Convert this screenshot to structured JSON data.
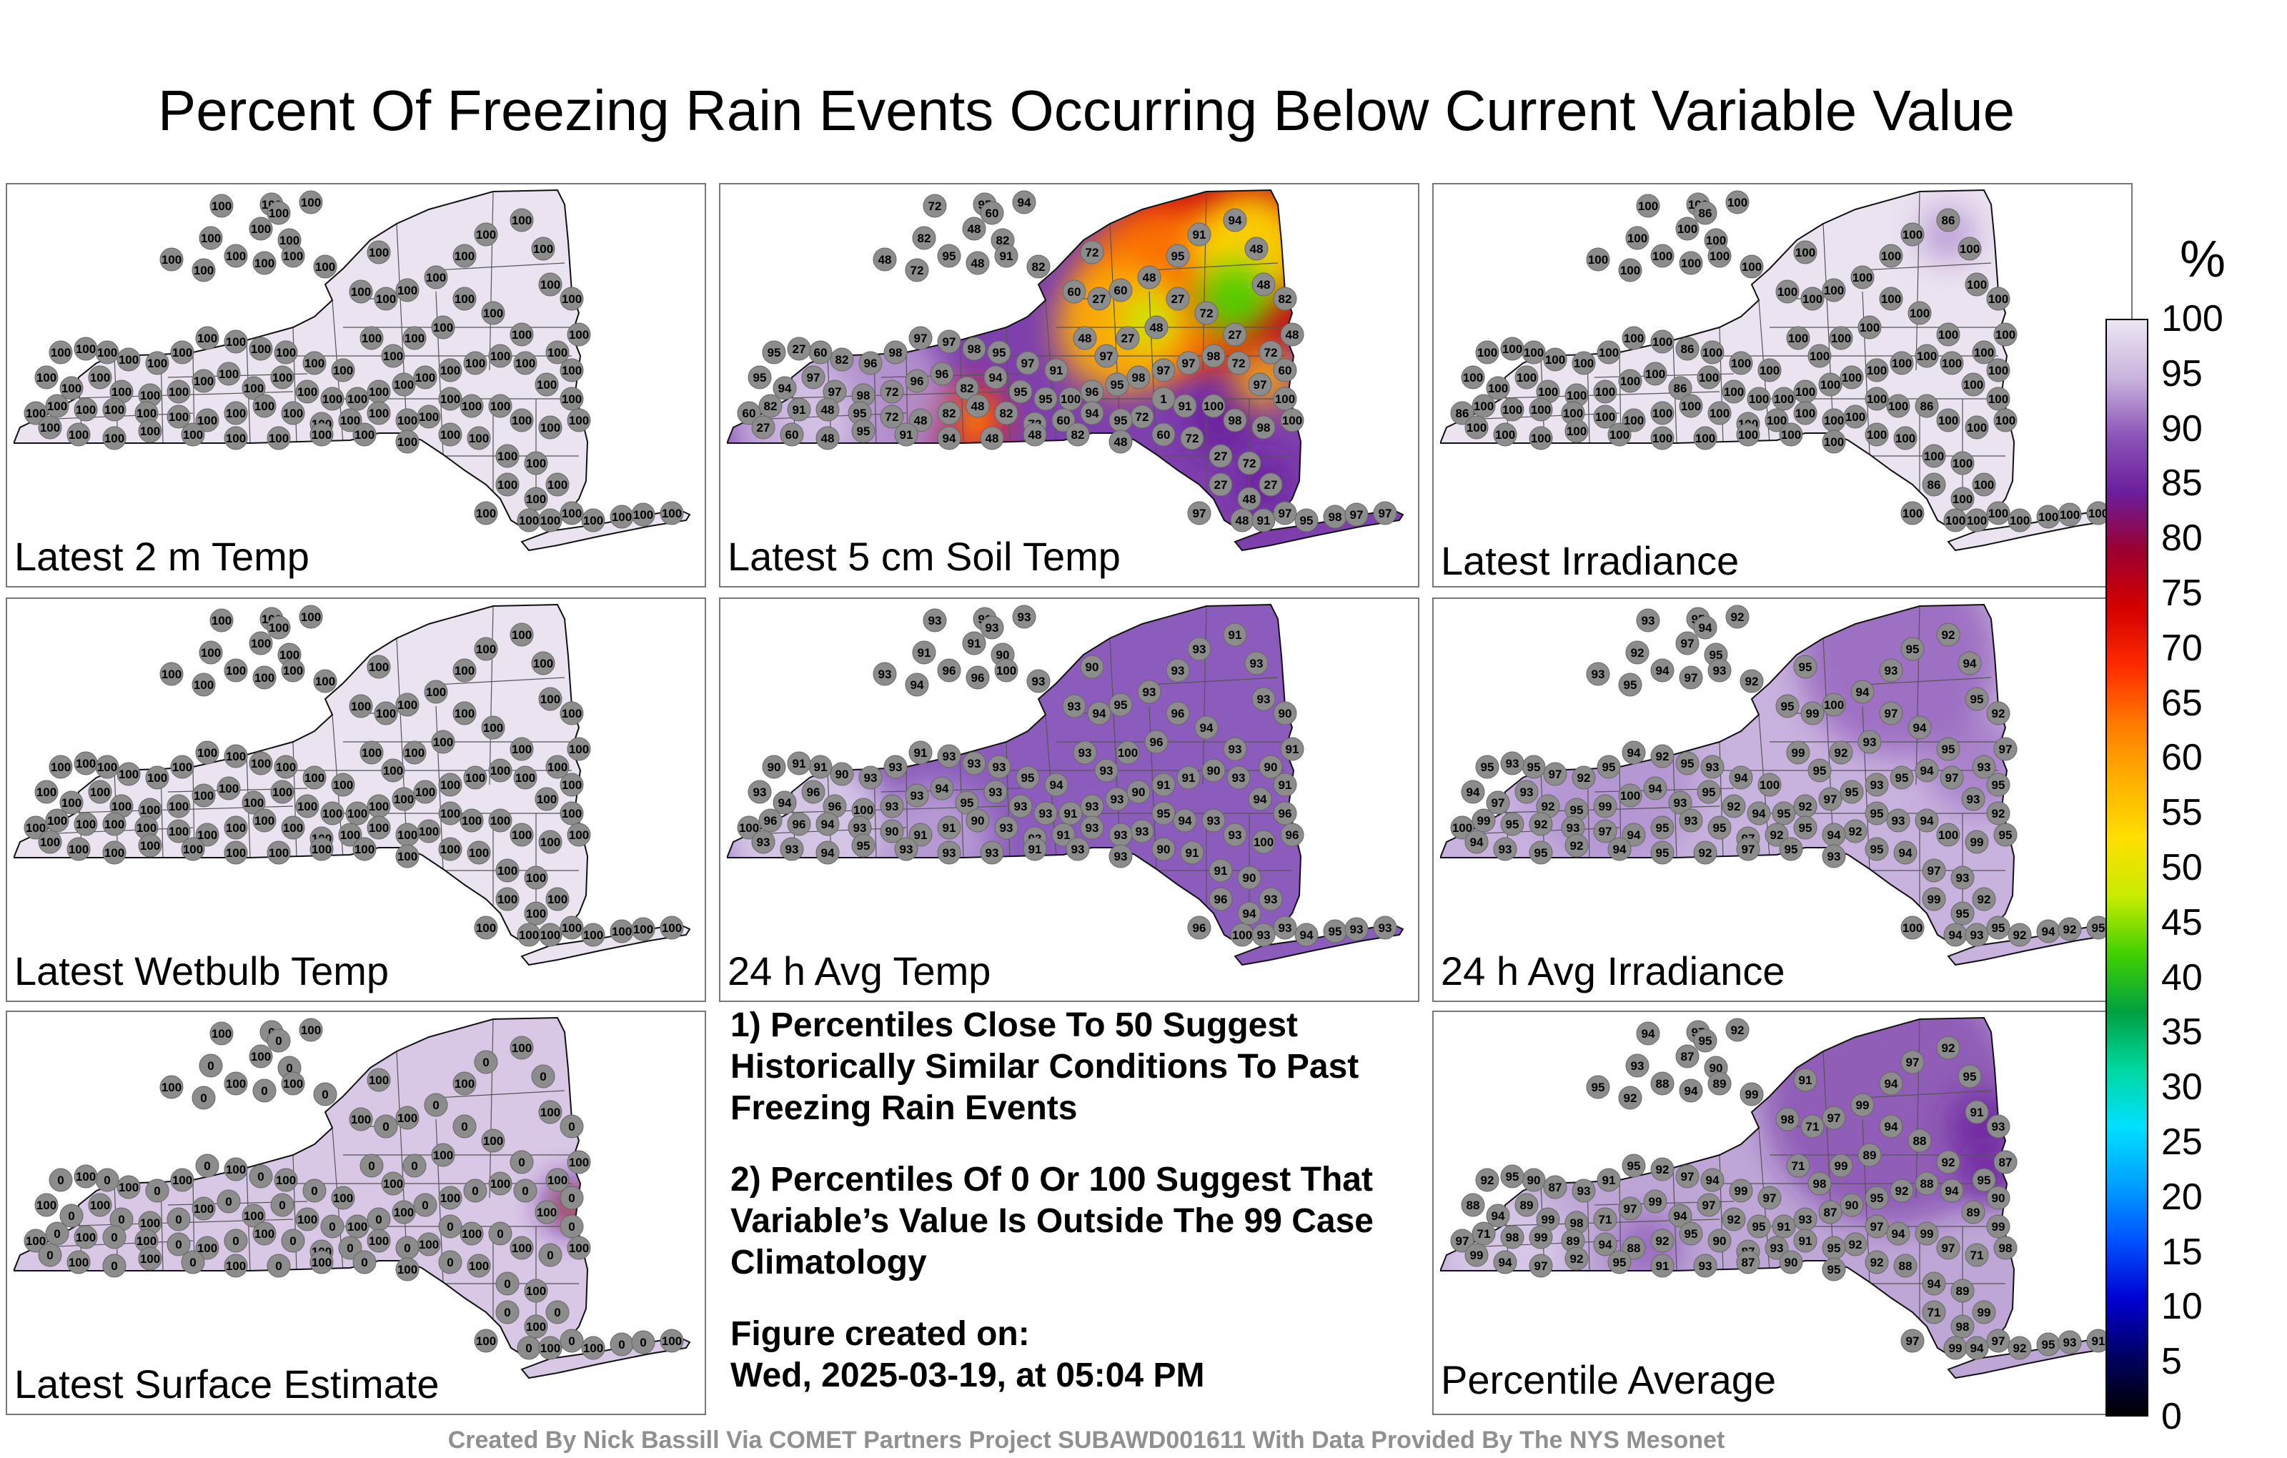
{
  "title": "Percent Of Freezing Rain Events Occurring Below Current Variable Value",
  "credit": "Created By Nick Bassill Via COMET Partners Project SUBAWD001611 With Data Provided By The NYS Mesonet",
  "notes": {
    "line1": "1) Percentiles Close To 50 Suggest Historically Similar Conditions To Past Freezing Rain Events",
    "line2": "2) Percentiles Of 0 Or 100 Suggest That Variable’s Value Is Outside The 99 Case Climatology",
    "created_label": "Figure created on:",
    "created_date": "Wed, 2025-03-19, at 05:04 PM"
  },
  "colorbar": {
    "unit": "%",
    "ticks": [
      "100",
      "95",
      "90",
      "85",
      "80",
      "75",
      "70",
      "65",
      "60",
      "55",
      "50",
      "45",
      "40",
      "35",
      "30",
      "25",
      "20",
      "15",
      "10",
      "5",
      "0"
    ],
    "colors": [
      "#ece6f2",
      "#c9b4dd",
      "#8c55b8",
      "#6a1e9c",
      "#9c0030",
      "#d40000",
      "#ff2a00",
      "#ff7a00",
      "#ffb000",
      "#ffe000",
      "#c8ec00",
      "#40d000",
      "#00a040",
      "#00d8a0",
      "#00e0ff",
      "#00a0ff",
      "#0050ff",
      "#0000d0",
      "#000060",
      "#000000"
    ]
  },
  "panels": [
    {
      "label": "Latest 2 m Temp",
      "kind": "uniform",
      "values": [
        100
      ]
    },
    {
      "label": "Latest 5 cm Soil Temp",
      "kind": "soil",
      "values": [
        72,
        95,
        94,
        60,
        72,
        82,
        48,
        82,
        48,
        72,
        95,
        48,
        91,
        82,
        60,
        27,
        60,
        48,
        95,
        91,
        94,
        48,
        48,
        82,
        48,
        60,
        72,
        27,
        72,
        27,
        48,
        27,
        97,
        48,
        91,
        97,
        95,
        98,
        97,
        97,
        98,
        96,
        82,
        60,
        27,
        95,
        95,
        94,
        97,
        97,
        98,
        72,
        96,
        96,
        82,
        94,
        95,
        95,
        100,
        96,
        95,
        98,
        97,
        97,
        98,
        72,
        97,
        100,
        100,
        98,
        98,
        100,
        91,
        1
      ]
    },
    {
      "label": "Latest Irradiance",
      "kind": "uniform",
      "values": [
        100,
        86,
        99,
        94,
        100,
        95
      ]
    },
    {
      "label": "Latest Wetbulb Temp",
      "kind": "uniform",
      "values": [
        100
      ]
    },
    {
      "label": "24 h Avg Temp",
      "kind": "avgtemp",
      "values": [
        93,
        91,
        93,
        93,
        90,
        91,
        91,
        90,
        93,
        94,
        96,
        96,
        100,
        93,
        93,
        94,
        95,
        93,
        93
      ]
    },
    {
      "label": "24 h Avg Irradiance",
      "kind": "avgirr",
      "values": [
        93,
        95,
        92,
        94,
        95,
        92,
        97,
        95,
        93,
        95,
        94,
        97,
        93,
        92,
        95,
        99,
        100,
        94
      ]
    },
    {
      "label": "Latest Surface Estimate",
      "kind": "surface",
      "values": [
        100,
        0
      ]
    },
    {
      "label": "Percentile Average",
      "kind": "average",
      "values": [
        94,
        97,
        92,
        95,
        91,
        93,
        87,
        90,
        95,
        92,
        88,
        94,
        89,
        99,
        98,
        71,
        97,
        99
      ]
    }
  ]
}
